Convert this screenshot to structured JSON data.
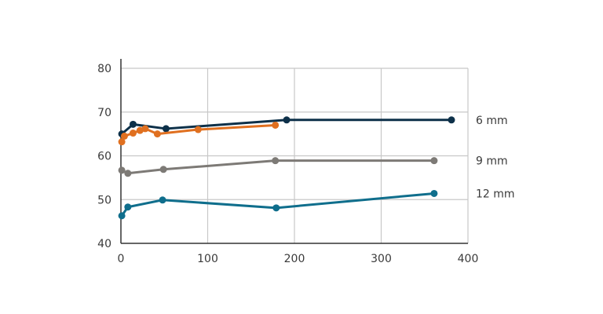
{
  "chart_data": {
    "type": "line",
    "title": "",
    "xlabel": "",
    "ylabel": "",
    "xlim": [
      0,
      400
    ],
    "ylim": [
      40,
      80
    ],
    "xticks": [
      0,
      100,
      200,
      300,
      400
    ],
    "yticks": [
      40,
      50,
      60,
      70,
      80
    ],
    "x_tick_labels": [
      "0",
      "100",
      "200",
      "300",
      "400"
    ],
    "y_tick_labels": [
      "40",
      "50",
      "60",
      "70",
      "80"
    ],
    "grid": true,
    "series": [
      {
        "name": "6 mm",
        "color": "#0d3049",
        "points": [
          [
            1,
            65
          ],
          [
            14,
            67.2
          ],
          [
            52,
            66.2
          ],
          [
            191,
            68.2
          ],
          [
            381,
            68.2
          ]
        ]
      },
      {
        "name": "",
        "color": "#e07020",
        "points": [
          [
            1,
            63.2
          ],
          [
            4,
            64.5
          ],
          [
            14,
            65.2
          ],
          [
            22,
            65.8
          ],
          [
            28,
            66.2
          ],
          [
            42,
            65
          ],
          [
            89,
            66
          ],
          [
            178,
            67
          ]
        ]
      },
      {
        "name": "9 mm",
        "color": "#7d7a76",
        "points": [
          [
            1,
            56.7
          ],
          [
            8,
            56
          ],
          [
            49,
            56.9
          ],
          [
            178,
            58.9
          ],
          [
            361,
            58.9
          ]
        ]
      },
      {
        "name": "12 mm",
        "color": "#0f6e8c",
        "points": [
          [
            1,
            46.3
          ],
          [
            8,
            48.3
          ],
          [
            48,
            49.9
          ],
          [
            179,
            48.1
          ],
          [
            361,
            51.4
          ]
        ]
      }
    ]
  }
}
